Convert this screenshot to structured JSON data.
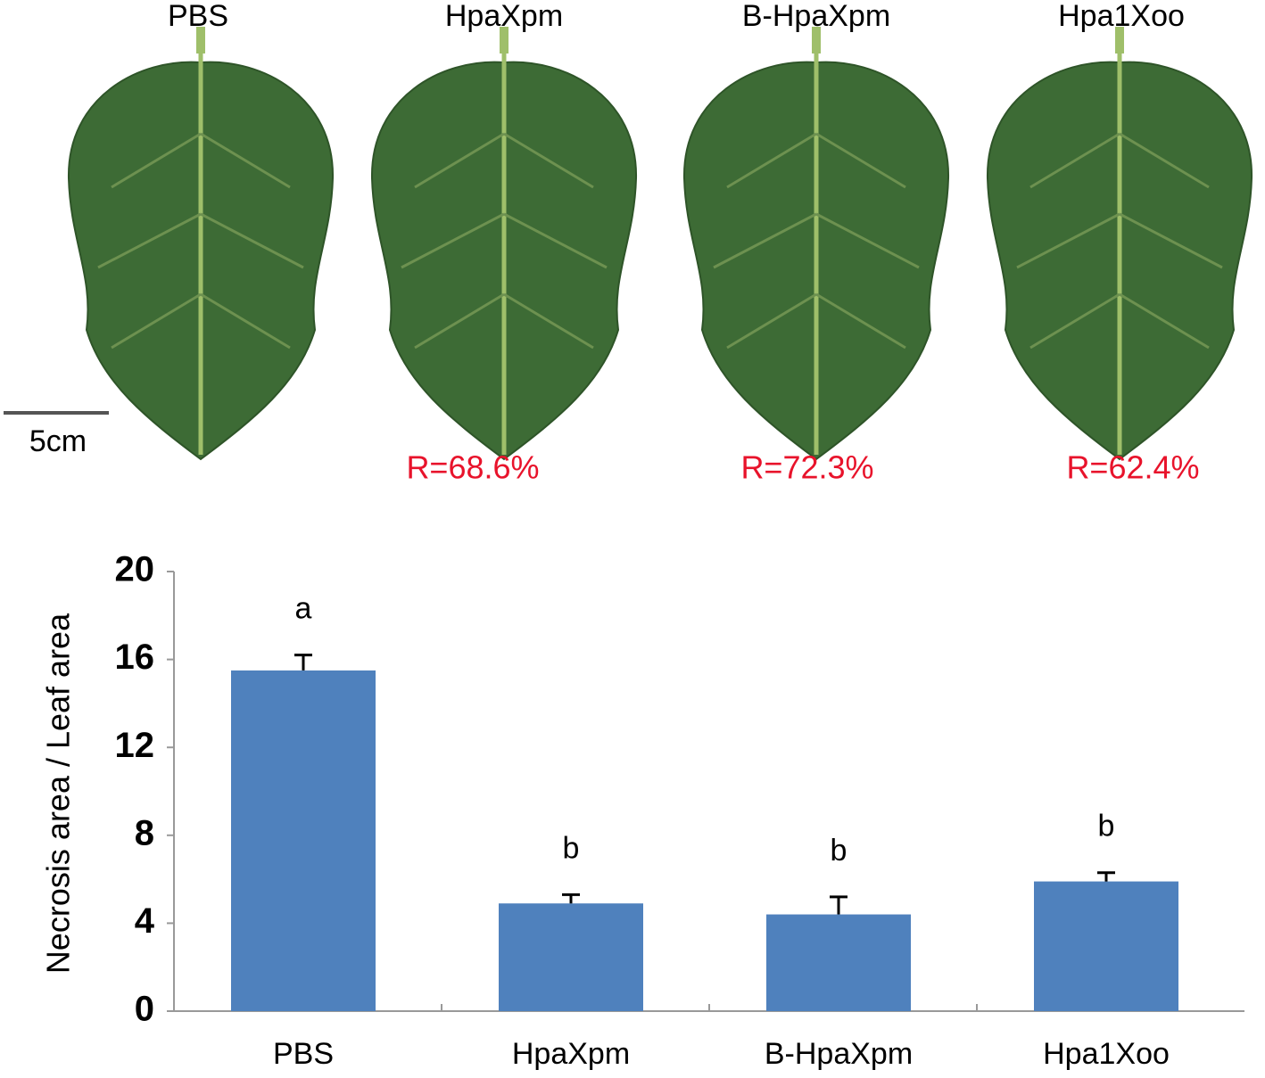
{
  "photo_panel": {
    "labels": [
      "PBS",
      "HpaXpm",
      "B-HpaXpm",
      "Hpa1Xoo"
    ],
    "ratios": [
      "R=68.6%",
      "R=72.3%",
      "R=62.4%"
    ],
    "scale_bar": "5cm"
  },
  "chart_data": {
    "type": "bar",
    "y_label": "Necrosis area / Leaf area",
    "categories": [
      "PBS",
      "HpaXpm",
      "B-HpaXpm",
      "Hpa1Xoo"
    ],
    "values": [
      15.5,
      4.9,
      4.4,
      5.9
    ],
    "errors": [
      0.7,
      0.4,
      0.8,
      0.4
    ],
    "significance": [
      "a",
      "b",
      "b",
      "b"
    ],
    "color": "#4f81bd",
    "ylim": [
      0,
      20
    ],
    "yticks": [
      0,
      4,
      8,
      12,
      16,
      20
    ],
    "grid": false
  }
}
